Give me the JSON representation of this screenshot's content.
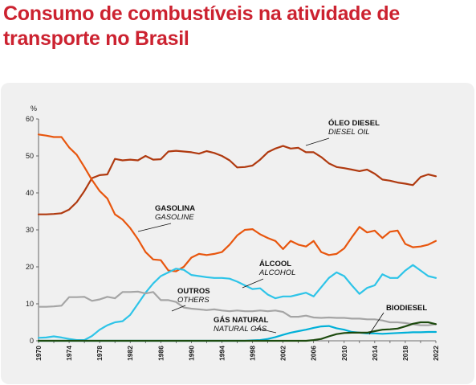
{
  "chart_data": {
    "type": "line",
    "title_line1": "Consumo de combustíveis na atividade de",
    "title_line2": "transporte no Brasil",
    "ylabel": "%",
    "ylim": [
      0,
      60
    ],
    "yticks": [
      "0",
      "10",
      "20",
      "30",
      "40",
      "50",
      "60"
    ],
    "xlim": [
      1970,
      2022
    ],
    "xticks": [
      "1970",
      "1974",
      "1978",
      "1982",
      "1986",
      "1990",
      "1994",
      "1998",
      "2002",
      "2006",
      "2010",
      "2014",
      "2018",
      "2022"
    ],
    "grid": false,
    "x": [
      1970,
      1971,
      1972,
      1973,
      1974,
      1975,
      1976,
      1977,
      1978,
      1979,
      1980,
      1981,
      1982,
      1983,
      1984,
      1985,
      1986,
      1987,
      1988,
      1989,
      1990,
      1991,
      1992,
      1993,
      1994,
      1995,
      1996,
      1997,
      1998,
      1999,
      2000,
      2001,
      2002,
      2003,
      2004,
      2005,
      2006,
      2007,
      2008,
      2009,
      2010,
      2011,
      2012,
      2013,
      2014,
      2015,
      2016,
      2017,
      2018,
      2019,
      2020,
      2021,
      2022
    ],
    "series": [
      {
        "name": "ÓLEO DIESEL",
        "name_en": "DIESEL OIL",
        "color": "#b03a10",
        "values": [
          34.2,
          34.2,
          34.3,
          34.5,
          35.5,
          37.5,
          40.5,
          44.0,
          44.8,
          45.0,
          49.2,
          48.8,
          49.0,
          48.8,
          50.0,
          49.0,
          49.1,
          51.2,
          51.4,
          51.2,
          51.0,
          50.6,
          51.3,
          50.8,
          50.0,
          48.8,
          46.9,
          47.0,
          47.4,
          49.0,
          51.0,
          52.0,
          52.7,
          52.0,
          52.2,
          51.0,
          51.0,
          49.7,
          48.0,
          47.0,
          46.7,
          46.3,
          45.9,
          46.3,
          45.2,
          43.6,
          43.3,
          42.8,
          42.5,
          42.1,
          44.3,
          45.0,
          44.5
        ]
      },
      {
        "name": "GASOLINA",
        "name_en": "GASOLINE",
        "color": "#e8560e",
        "values": [
          55.8,
          55.5,
          55.1,
          55.1,
          52.3,
          50.3,
          47.0,
          43.5,
          40.5,
          38.5,
          34.2,
          32.8,
          30.5,
          27.5,
          24.0,
          22.0,
          21.8,
          19.0,
          18.8,
          20.0,
          22.5,
          23.5,
          23.2,
          23.5,
          24.0,
          26.0,
          28.5,
          30.0,
          30.2,
          28.8,
          27.8,
          27.0,
          24.8,
          27.0,
          26.0,
          25.5,
          27.0,
          24.0,
          23.2,
          23.5,
          25.0,
          28.0,
          30.8,
          29.3,
          29.8,
          27.8,
          29.5,
          29.8,
          26.2,
          25.3,
          25.5,
          26.0,
          27.0
        ]
      },
      {
        "name": "ÁLCOOL",
        "name_en": "ALCOHOL",
        "color": "#2ec4e8",
        "values": [
          0.8,
          0.9,
          1.2,
          0.9,
          0.5,
          0.2,
          0.2,
          1.3,
          3.0,
          4.2,
          5.0,
          5.3,
          7.0,
          10.0,
          13.0,
          15.5,
          17.5,
          18.5,
          19.5,
          19.2,
          17.8,
          17.5,
          17.2,
          17.0,
          17.0,
          16.8,
          16.0,
          15.0,
          14.0,
          14.2,
          12.5,
          11.5,
          12.0,
          12.0,
          12.5,
          13.0,
          12.0,
          14.5,
          17.0,
          18.5,
          17.5,
          15.0,
          12.7,
          14.3,
          15.0,
          18.0,
          17.0,
          17.0,
          19.0,
          20.5,
          19.0,
          17.5,
          17.0
        ]
      },
      {
        "name": "OUTROS",
        "name_en": "OTHERS",
        "color": "#a5a5a5",
        "values": [
          9.2,
          9.2,
          9.3,
          9.5,
          11.8,
          11.8,
          11.9,
          10.8,
          11.2,
          11.9,
          11.5,
          13.2,
          13.2,
          13.3,
          12.8,
          13.2,
          11.0,
          11.0,
          10.5,
          9.0,
          8.7,
          8.5,
          8.3,
          8.5,
          8.2,
          8.0,
          8.2,
          8.0,
          8.0,
          8.2,
          8.0,
          8.2,
          7.8,
          6.5,
          6.5,
          6.8,
          6.3,
          6.2,
          6.3,
          6.2,
          6.2,
          6.0,
          6.0,
          5.8,
          5.8,
          5.5,
          5.0,
          5.0,
          4.8,
          4.5,
          4.2,
          4.2,
          4.5
        ]
      },
      {
        "name": "GÁS NATURAL",
        "name_en": "NATURAL GÁS",
        "color": "#00b0d8",
        "values": [
          0,
          0,
          0,
          0,
          0,
          0,
          0,
          0,
          0,
          0,
          0,
          0,
          0,
          0,
          0,
          0,
          0,
          0,
          0,
          0,
          0,
          0,
          0,
          0,
          0,
          0,
          0,
          0,
          0.1,
          0.2,
          0.5,
          1.0,
          1.6,
          2.2,
          2.6,
          3.0,
          3.5,
          3.9,
          4.0,
          3.4,
          3.0,
          2.4,
          2.2,
          2.0,
          2.0,
          1.9,
          2.0,
          2.1,
          2.2,
          2.3,
          2.3,
          2.4,
          2.4
        ]
      },
      {
        "name": "BIODIESEL",
        "name_en": "",
        "color": "#1d4a0e",
        "values": [
          0,
          0,
          0,
          0,
          0,
          0,
          0,
          0,
          0,
          0,
          0,
          0,
          0,
          0,
          0,
          0,
          0,
          0,
          0,
          0,
          0,
          0,
          0,
          0,
          0,
          0,
          0,
          0,
          0,
          0,
          0,
          0,
          0,
          0,
          0,
          0,
          0.2,
          0.5,
          1.2,
          1.8,
          2.1,
          2.2,
          2.2,
          2.2,
          2.6,
          3.0,
          3.1,
          3.3,
          3.9,
          4.6,
          5.0,
          5.0,
          4.5
        ]
      }
    ],
    "annotations": [
      {
        "label": "ÓLEO DIESEL",
        "label_en": "DIESEL OIL"
      },
      {
        "label": "GASOLINA",
        "label_en": "GASOLINE"
      },
      {
        "label": "ÁLCOOL",
        "label_en": "ALCOHOL"
      },
      {
        "label": "OUTROS",
        "label_en": "OTHERS"
      },
      {
        "label": "GÁS NATURAL",
        "label_en": "NATURAL GÁS"
      },
      {
        "label": "BIODIESEL",
        "label_en": ""
      }
    ]
  }
}
